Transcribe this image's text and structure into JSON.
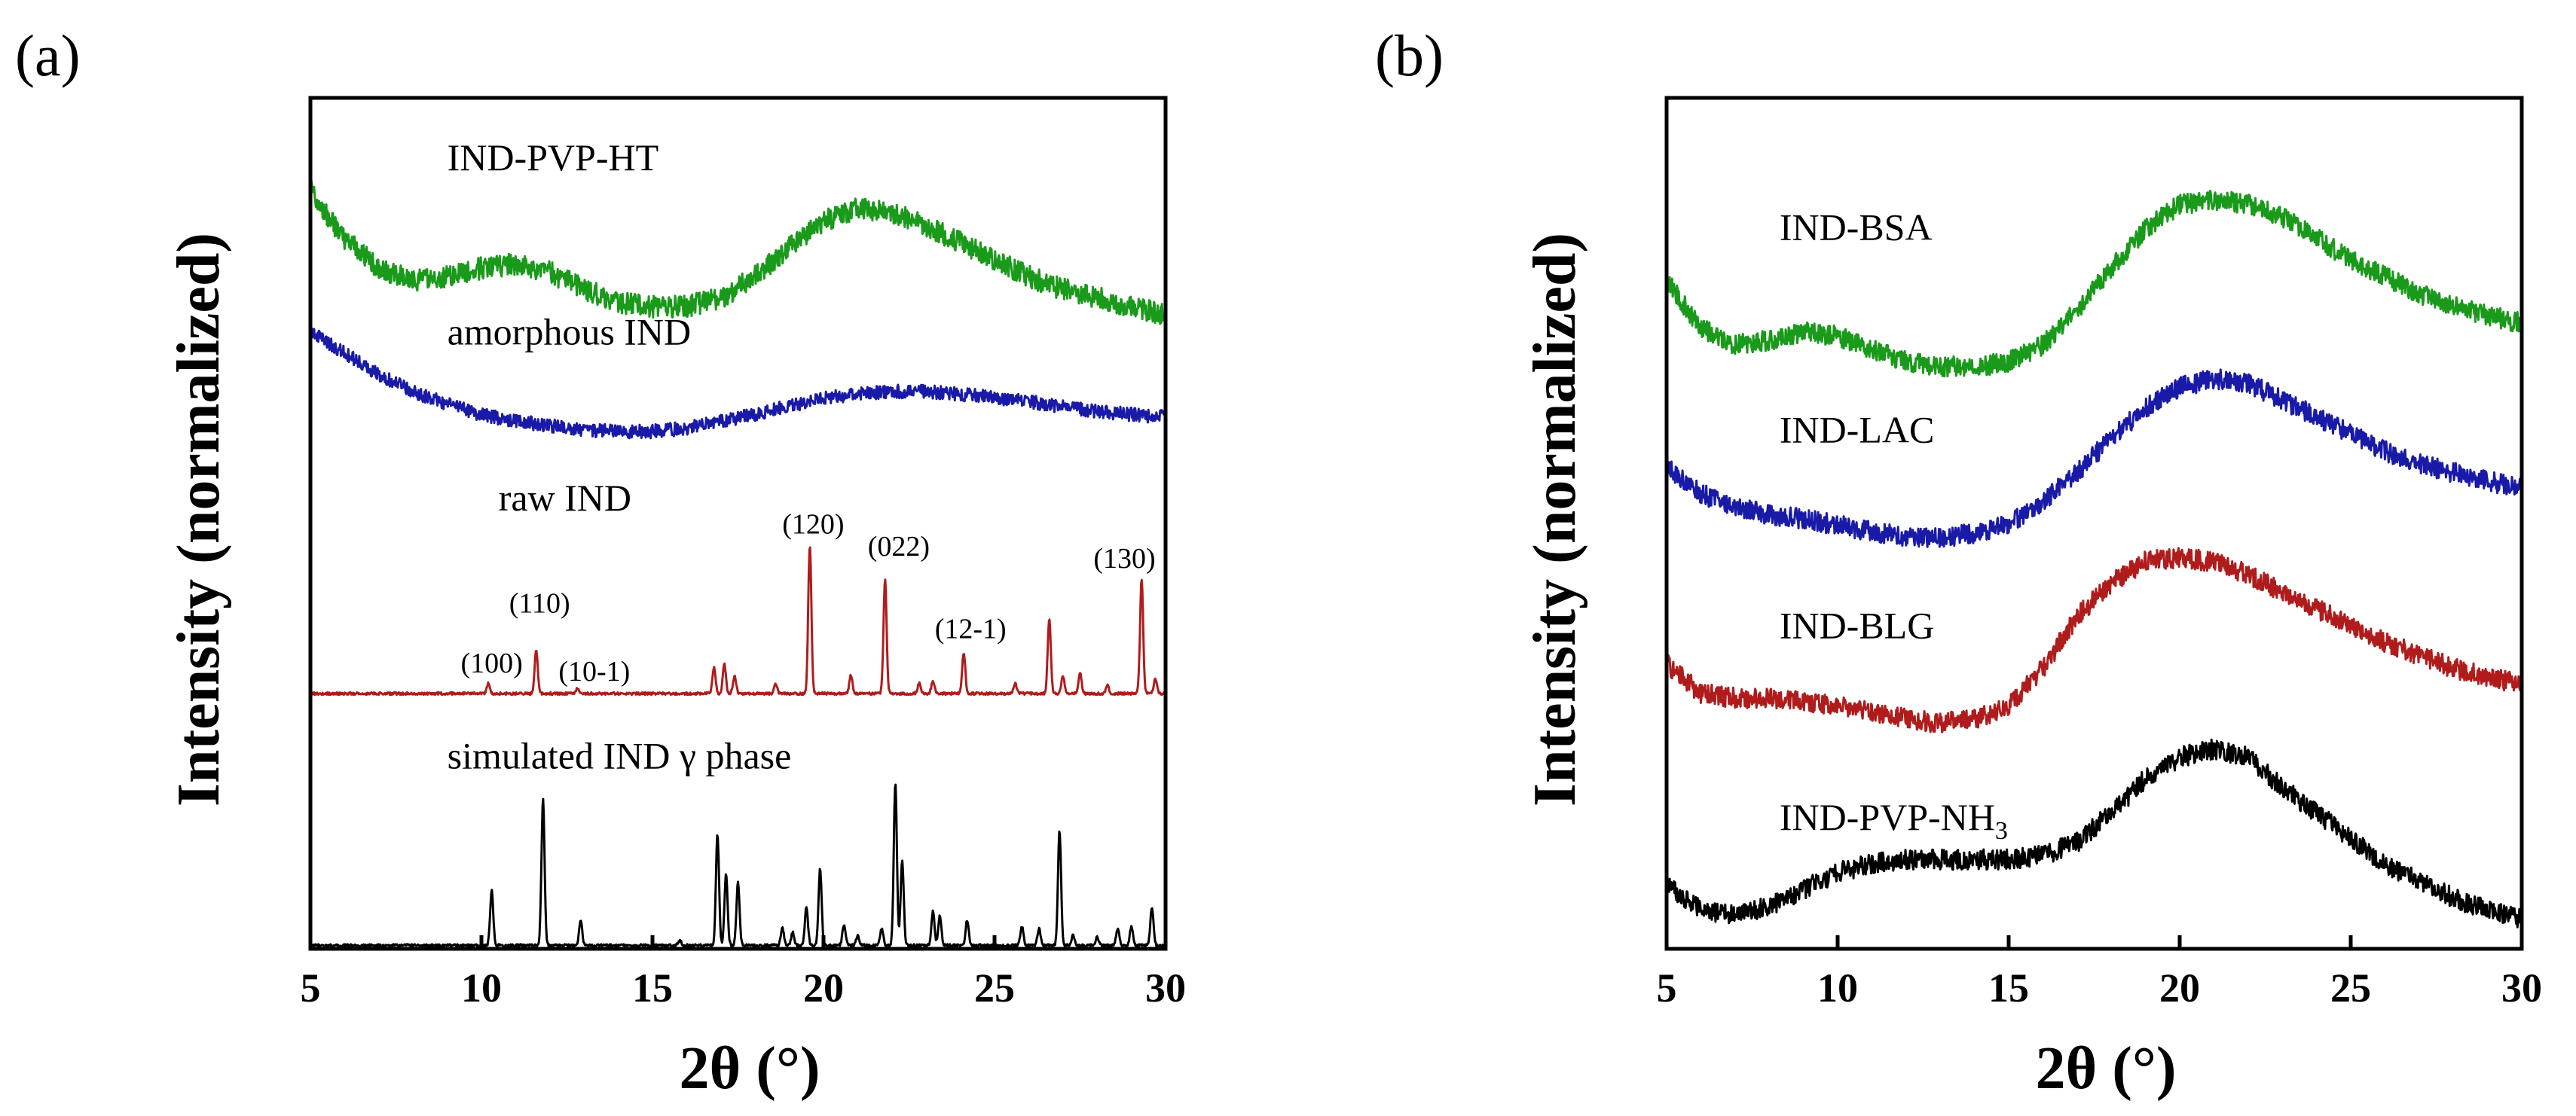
{
  "chart_data": [
    {
      "type": "line",
      "panel": "(a)",
      "xlabel": "2θ (°)",
      "ylabel": "Intensity (normalized)",
      "xlim": [
        5,
        30
      ],
      "ylim": [
        0,
        1
      ],
      "xticks": [
        5,
        10,
        15,
        20,
        25,
        30
      ],
      "grid": false,
      "legend": "none",
      "series": [
        {
          "name": "IND-PVP-HT",
          "color": "#1a9a1a",
          "kind": "amorphous",
          "noise": 0.013,
          "x": [
            5,
            5.5,
            6,
            7,
            8,
            9,
            10,
            11,
            12,
            13,
            14,
            15,
            16,
            17,
            18,
            19,
            20,
            21,
            22,
            23,
            24,
            25,
            26,
            27,
            28,
            29,
            30
          ],
          "y": [
            0.895,
            0.86,
            0.835,
            0.8,
            0.785,
            0.79,
            0.8,
            0.805,
            0.795,
            0.775,
            0.76,
            0.755,
            0.755,
            0.765,
            0.79,
            0.825,
            0.855,
            0.87,
            0.865,
            0.85,
            0.83,
            0.81,
            0.79,
            0.775,
            0.765,
            0.755,
            0.745
          ]
        },
        {
          "name": "amorphous IND",
          "color": "#1a1aa8",
          "kind": "amorphous",
          "noise": 0.008,
          "x": [
            5,
            6,
            7,
            8,
            9,
            10,
            11,
            12,
            13,
            14,
            15,
            16,
            17,
            18,
            19,
            20,
            21,
            22,
            23,
            24,
            25,
            26,
            27,
            28,
            29,
            30
          ],
          "y": [
            0.725,
            0.7,
            0.675,
            0.655,
            0.64,
            0.628,
            0.62,
            0.615,
            0.61,
            0.608,
            0.608,
            0.612,
            0.62,
            0.628,
            0.638,
            0.647,
            0.652,
            0.655,
            0.655,
            0.652,
            0.648,
            0.643,
            0.637,
            0.632,
            0.628,
            0.625
          ]
        },
        {
          "name": "raw IND",
          "color": "#b01c1c",
          "kind": "crystalline",
          "baseline": 0.3,
          "peaks": [
            {
              "x": 10.2,
              "h": 0.012
            },
            {
              "x": 11.6,
              "h": 0.052
            },
            {
              "x": 12.8,
              "h": 0.006
            },
            {
              "x": 16.8,
              "h": 0.03
            },
            {
              "x": 17.1,
              "h": 0.035
            },
            {
              "x": 17.4,
              "h": 0.02
            },
            {
              "x": 18.6,
              "h": 0.012
            },
            {
              "x": 19.6,
              "h": 0.175
            },
            {
              "x": 20.8,
              "h": 0.022
            },
            {
              "x": 21.8,
              "h": 0.135
            },
            {
              "x": 22.8,
              "h": 0.012
            },
            {
              "x": 23.2,
              "h": 0.015
            },
            {
              "x": 24.1,
              "h": 0.048
            },
            {
              "x": 25.6,
              "h": 0.012
            },
            {
              "x": 26.6,
              "h": 0.088
            },
            {
              "x": 27.0,
              "h": 0.02
            },
            {
              "x": 27.5,
              "h": 0.025
            },
            {
              "x": 28.3,
              "h": 0.01
            },
            {
              "x": 29.3,
              "h": 0.135
            },
            {
              "x": 29.7,
              "h": 0.018
            }
          ]
        },
        {
          "name": "simulated IND γ phase",
          "color": "#000000",
          "kind": "crystalline",
          "baseline": 0.004,
          "peaks": [
            {
              "x": 10.3,
              "h": 0.065
            },
            {
              "x": 11.8,
              "h": 0.172
            },
            {
              "x": 12.9,
              "h": 0.03
            },
            {
              "x": 15.8,
              "h": 0.006
            },
            {
              "x": 16.9,
              "h": 0.13
            },
            {
              "x": 17.15,
              "h": 0.085
            },
            {
              "x": 17.5,
              "h": 0.075
            },
            {
              "x": 18.8,
              "h": 0.02
            },
            {
              "x": 19.1,
              "h": 0.015
            },
            {
              "x": 19.5,
              "h": 0.045
            },
            {
              "x": 19.9,
              "h": 0.09
            },
            {
              "x": 20.6,
              "h": 0.025
            },
            {
              "x": 21.0,
              "h": 0.012
            },
            {
              "x": 21.7,
              "h": 0.02
            },
            {
              "x": 22.1,
              "h": 0.19
            },
            {
              "x": 22.3,
              "h": 0.1
            },
            {
              "x": 23.2,
              "h": 0.04
            },
            {
              "x": 23.4,
              "h": 0.035
            },
            {
              "x": 24.2,
              "h": 0.03
            },
            {
              "x": 25.8,
              "h": 0.022
            },
            {
              "x": 26.3,
              "h": 0.02
            },
            {
              "x": 26.9,
              "h": 0.135
            },
            {
              "x": 27.3,
              "h": 0.012
            },
            {
              "x": 28.0,
              "h": 0.01
            },
            {
              "x": 28.6,
              "h": 0.02
            },
            {
              "x": 29.0,
              "h": 0.022
            },
            {
              "x": 29.6,
              "h": 0.045
            }
          ]
        }
      ],
      "labels": [
        {
          "text": "IND-PVP-HT",
          "x": 9.0,
          "y": 0.915
        },
        {
          "text": "amorphous IND",
          "x": 9.0,
          "y": 0.71
        },
        {
          "text": "raw IND",
          "x": 10.5,
          "y": 0.515
        },
        {
          "text": "simulated IND γ phase",
          "x": 9.0,
          "y": 0.212
        }
      ],
      "annotations": [
        {
          "text": "(100)",
          "x": 10.3,
          "y": 0.325
        },
        {
          "text": "(110)",
          "x": 11.7,
          "y": 0.395
        },
        {
          "text": "(10-1)",
          "x": 13.3,
          "y": 0.315
        },
        {
          "text": "(120)",
          "x": 19.7,
          "y": 0.488
        },
        {
          "text": "(022)",
          "x": 22.2,
          "y": 0.462
        },
        {
          "text": "(12-1)",
          "x": 24.3,
          "y": 0.365
        },
        {
          "text": "(130)",
          "x": 28.8,
          "y": 0.448
        }
      ]
    },
    {
      "type": "line",
      "panel": "(b)",
      "xlabel": "2θ (°)",
      "ylabel": "Intensity (normalized)",
      "xlim": [
        5,
        30
      ],
      "ylim": [
        0,
        1
      ],
      "xticks": [
        5,
        10,
        15,
        20,
        25,
        30
      ],
      "grid": false,
      "legend": "none",
      "series": [
        {
          "name": "IND-BSA",
          "color": "#1a9a1a",
          "kind": "amorphous",
          "noise": 0.012,
          "x": [
            5,
            6,
            7,
            8,
            9,
            10,
            11,
            12,
            13,
            14,
            15,
            16,
            17,
            18,
            19,
            20,
            21,
            22,
            23,
            24,
            25,
            26,
            27,
            28,
            29,
            30
          ],
          "y": [
            0.785,
            0.73,
            0.71,
            0.715,
            0.725,
            0.72,
            0.705,
            0.69,
            0.685,
            0.683,
            0.69,
            0.71,
            0.75,
            0.8,
            0.845,
            0.875,
            0.88,
            0.875,
            0.86,
            0.835,
            0.81,
            0.79,
            0.77,
            0.755,
            0.745,
            0.735
          ]
        },
        {
          "name": "IND-LAC",
          "color": "#1a1aa8",
          "kind": "amorphous",
          "noise": 0.012,
          "x": [
            5,
            6,
            7,
            8,
            9,
            10,
            11,
            12,
            13,
            14,
            15,
            16,
            17,
            18,
            19,
            20,
            21,
            22,
            23,
            24,
            25,
            26,
            27,
            28,
            29,
            30
          ],
          "y": [
            0.565,
            0.535,
            0.52,
            0.51,
            0.505,
            0.498,
            0.49,
            0.485,
            0.483,
            0.488,
            0.5,
            0.525,
            0.56,
            0.6,
            0.635,
            0.66,
            0.67,
            0.665,
            0.645,
            0.625,
            0.605,
            0.585,
            0.57,
            0.56,
            0.55,
            0.54
          ]
        },
        {
          "name": "IND-BLG",
          "color": "#b01c1c",
          "kind": "amorphous",
          "noise": 0.012,
          "x": [
            5,
            6,
            7,
            8,
            9,
            10,
            11,
            12,
            13,
            14,
            15,
            16,
            17,
            18,
            19,
            20,
            21,
            22,
            23,
            24,
            25,
            26,
            27,
            28,
            29,
            30
          ],
          "y": [
            0.335,
            0.3,
            0.295,
            0.295,
            0.29,
            0.285,
            0.28,
            0.27,
            0.265,
            0.27,
            0.285,
            0.33,
            0.39,
            0.43,
            0.455,
            0.46,
            0.455,
            0.44,
            0.42,
            0.4,
            0.38,
            0.36,
            0.345,
            0.33,
            0.32,
            0.31
          ]
        },
        {
          "name": "IND-PVP-NH3",
          "color": "#000000",
          "kind": "amorphous",
          "noise": 0.012,
          "x": [
            5,
            6,
            7,
            8,
            9,
            10,
            11,
            12,
            13,
            14,
            15,
            16,
            17,
            18,
            19,
            20,
            21,
            22,
            23,
            24,
            25,
            26,
            27,
            28,
            29,
            30
          ],
          "y": [
            0.075,
            0.045,
            0.04,
            0.05,
            0.07,
            0.09,
            0.1,
            0.105,
            0.105,
            0.105,
            0.105,
            0.11,
            0.125,
            0.16,
            0.2,
            0.225,
            0.235,
            0.225,
            0.19,
            0.16,
            0.13,
            0.1,
            0.08,
            0.06,
            0.045,
            0.035
          ]
        }
      ],
      "labels": [
        {
          "text": "IND-BSA",
          "x": 8.3,
          "y": 0.833
        },
        {
          "text": "IND-LAC",
          "x": 8.3,
          "y": 0.595
        },
        {
          "text": "IND-BLG",
          "x": 8.3,
          "y": 0.365
        },
        {
          "text": "IND-PVP-NH",
          "sub": "3",
          "x": 8.3,
          "y": 0.14
        }
      ]
    }
  ]
}
